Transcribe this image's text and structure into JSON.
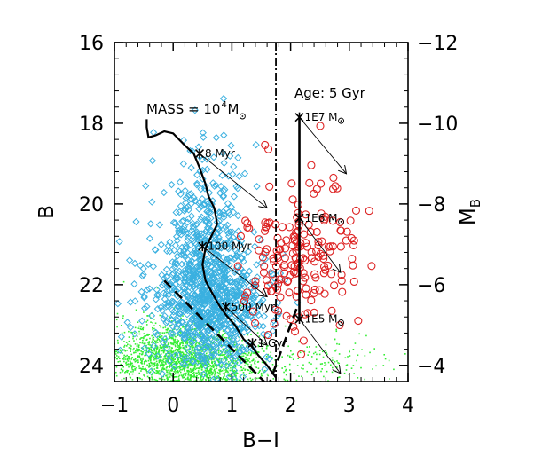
{
  "chart_data": {
    "type": "scatter",
    "xlabel": "B−I",
    "ylabel": "B",
    "ylabel_right": "M",
    "ylabel_right_sub": "B",
    "xlim": [
      -1,
      4
    ],
    "ylim": [
      24.4,
      16
    ],
    "xticks": [
      -1,
      0,
      1,
      2,
      3,
      4
    ],
    "xtick_labels": [
      "−1",
      "0",
      "1",
      "2",
      "3",
      "4"
    ],
    "yticks": [
      16,
      18,
      20,
      22,
      24
    ],
    "ytick_labels": [
      "16",
      "18",
      "20",
      "22",
      "24"
    ],
    "right_ticks": [
      -12,
      -10,
      -8,
      -6,
      -4
    ],
    "right_tick_labels": [
      "−12",
      "−10",
      "−8",
      "−6",
      "−4"
    ],
    "right_offset": 28,
    "annotations": {
      "mass": "MASS = 10",
      "mass_exp": "4",
      "mass_unit": "M",
      "age": "Age: 5 Gyr"
    },
    "series": [
      {
        "name": "field-green",
        "color": "#33ee33",
        "marker": "dot",
        "clouds": [
          {
            "cx": 0.0,
            "cy": 23.8,
            "sx": 0.55,
            "sy": 0.45,
            "n": 1700
          },
          {
            "cx": 0.8,
            "cy": 24.0,
            "sx": 0.45,
            "sy": 0.3,
            "n": 500
          },
          {
            "cx": 2.4,
            "cy": 23.9,
            "sx": 0.8,
            "sy": 0.35,
            "n": 180
          }
        ]
      },
      {
        "name": "clusters-blue",
        "color": "#3ab0e0",
        "marker": "diamond",
        "clouds": [
          {
            "cx": 0.6,
            "cy": 22.3,
            "sx": 0.5,
            "sy": 0.8,
            "n": 900
          },
          {
            "cx": 0.5,
            "cy": 20.2,
            "sx": 0.35,
            "sy": 0.8,
            "n": 180
          }
        ]
      },
      {
        "name": "clusters-red",
        "color": "#dd2222",
        "marker": "circle",
        "clouds": [
          {
            "cx": 2.2,
            "cy": 21.3,
            "sx": 0.45,
            "sy": 1.0,
            "n": 190
          }
        ]
      }
    ],
    "track_young": {
      "x": [
        -0.45,
        -0.45,
        -0.42,
        -0.3,
        -0.15,
        0.0,
        0.2,
        0.35,
        0.45,
        0.55,
        0.6,
        0.7,
        0.75,
        0.65,
        0.55,
        0.5,
        0.55,
        0.7,
        0.8,
        0.9,
        1.05,
        1.2,
        1.35,
        1.45,
        1.6,
        1.75
      ],
      "y": [
        17.9,
        18.1,
        18.35,
        18.3,
        18.2,
        18.25,
        18.55,
        18.75,
        19.1,
        19.5,
        19.8,
        20.1,
        20.5,
        20.8,
        21.1,
        21.5,
        21.9,
        22.3,
        22.55,
        22.75,
        23.0,
        23.35,
        23.55,
        23.75,
        24.0,
        24.3
      ]
    },
    "age_markers": [
      {
        "label": "8 Myr",
        "x": 0.45,
        "y": 18.75
      },
      {
        "label": "100 Myr",
        "x": 0.5,
        "y": 21.05
      },
      {
        "label": "500 Myr",
        "x": 0.9,
        "y": 22.55
      },
      {
        "label": "1 Gyr",
        "x": 1.35,
        "y": 23.45
      }
    ],
    "dashed_lines": [
      {
        "x1": -0.15,
        "y1": 21.9,
        "x2": 1.55,
        "y2": 24.4
      },
      {
        "x1": 2.1,
        "y1": 22.6,
        "x2": 1.65,
        "y2": 24.4
      }
    ],
    "dashdot_line": {
      "x": 1.75
    },
    "mass_track": {
      "x": 2.15,
      "y_top": 17.85,
      "y_bottom": 22.9
    },
    "mass_markers": [
      {
        "label": "1E7 M",
        "x": 2.15,
        "y": 17.85
      },
      {
        "label": "1E6 M",
        "x": 2.15,
        "y": 20.35
      },
      {
        "label": "1E5 M",
        "x": 2.15,
        "y": 22.85
      }
    ],
    "arrows": [
      {
        "x1": 0.45,
        "y1": 18.75,
        "x2": 1.6,
        "y2": 20.1
      },
      {
        "x1": 0.5,
        "y1": 21.05,
        "x2": 1.6,
        "y2": 22.3
      },
      {
        "x1": 0.9,
        "y1": 22.55,
        "x2": 1.6,
        "y2": 23.5
      },
      {
        "x1": 2.15,
        "y1": 17.85,
        "x2": 2.95,
        "y2": 19.25
      },
      {
        "x1": 2.15,
        "y1": 20.35,
        "x2": 2.85,
        "y2": 21.7
      },
      {
        "x1": 2.15,
        "y1": 22.85,
        "x2": 2.85,
        "y2": 24.2
      }
    ]
  }
}
